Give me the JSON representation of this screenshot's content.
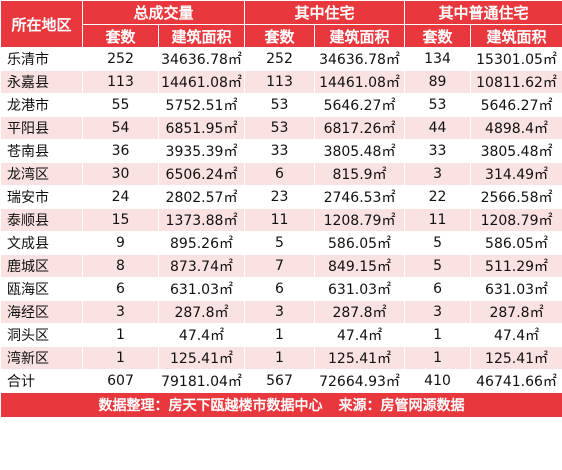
{
  "headers": {
    "region": "所在地区",
    "group_total": "总成交量",
    "group_residential": "其中住宅",
    "group_ordinary": "其中普通住宅",
    "units": "套数",
    "area": "建筑面积"
  },
  "rows": [
    {
      "region": "乐清市",
      "t_units": "252",
      "t_area": "34636.78㎡",
      "r_units": "252",
      "r_area": "34636.78㎡",
      "o_units": "134",
      "o_area": "15301.05㎡"
    },
    {
      "region": "永嘉县",
      "t_units": "113",
      "t_area": "14461.08㎡",
      "r_units": "113",
      "r_area": "14461.08㎡",
      "o_units": "89",
      "o_area": "10811.62㎡"
    },
    {
      "region": "龙港市",
      "t_units": "55",
      "t_area": "5752.51㎡",
      "r_units": "53",
      "r_area": "5646.27㎡",
      "o_units": "53",
      "o_area": "5646.27㎡"
    },
    {
      "region": "平阳县",
      "t_units": "54",
      "t_area": "6851.95㎡",
      "r_units": "53",
      "r_area": "6817.26㎡",
      "o_units": "44",
      "o_area": "4898.4㎡"
    },
    {
      "region": "苍南县",
      "t_units": "36",
      "t_area": "3935.39㎡",
      "r_units": "33",
      "r_area": "3805.48㎡",
      "o_units": "33",
      "o_area": "3805.48㎡"
    },
    {
      "region": "龙湾区",
      "t_units": "30",
      "t_area": "6506.24㎡",
      "r_units": "6",
      "r_area": "815.9㎡",
      "o_units": "3",
      "o_area": "314.49㎡"
    },
    {
      "region": "瑞安市",
      "t_units": "24",
      "t_area": "2802.57㎡",
      "r_units": "23",
      "r_area": "2746.53㎡",
      "o_units": "22",
      "o_area": "2566.58㎡"
    },
    {
      "region": "泰顺县",
      "t_units": "15",
      "t_area": "1373.88㎡",
      "r_units": "11",
      "r_area": "1208.79㎡",
      "o_units": "11",
      "o_area": "1208.79㎡"
    },
    {
      "region": "文成县",
      "t_units": "9",
      "t_area": "895.26㎡",
      "r_units": "5",
      "r_area": "586.05㎡",
      "o_units": "5",
      "o_area": "586.05㎡"
    },
    {
      "region": "鹿城区",
      "t_units": "8",
      "t_area": "873.74㎡",
      "r_units": "7",
      "r_area": "849.15㎡",
      "o_units": "5",
      "o_area": "511.29㎡"
    },
    {
      "region": "瓯海区",
      "t_units": "6",
      "t_area": "631.03㎡",
      "r_units": "6",
      "r_area": "631.03㎡",
      "o_units": "6",
      "o_area": "631.03㎡"
    },
    {
      "region": "海经区",
      "t_units": "3",
      "t_area": "287.8㎡",
      "r_units": "3",
      "r_area": "287.8㎡",
      "o_units": "3",
      "o_area": "287.8㎡"
    },
    {
      "region": "洞头区",
      "t_units": "1",
      "t_area": "47.4㎡",
      "r_units": "1",
      "r_area": "47.4㎡",
      "o_units": "1",
      "o_area": "47.4㎡"
    },
    {
      "region": "湾新区",
      "t_units": "1",
      "t_area": "125.41㎡",
      "r_units": "1",
      "r_area": "125.41㎡",
      "o_units": "1",
      "o_area": "125.41㎡"
    }
  ],
  "total": {
    "region": "合计",
    "t_units": "607",
    "t_area": "79181.04㎡",
    "r_units": "567",
    "r_area": "72664.93㎡",
    "o_units": "410",
    "o_area": "46741.66㎡"
  },
  "footer": {
    "compiler": "数据整理：房天下瓯越楼市数据中心",
    "source": "来源：房管网源数据"
  },
  "colors": {
    "header_red": "#e8383d",
    "stripe_pink": "#fae1e2"
  }
}
